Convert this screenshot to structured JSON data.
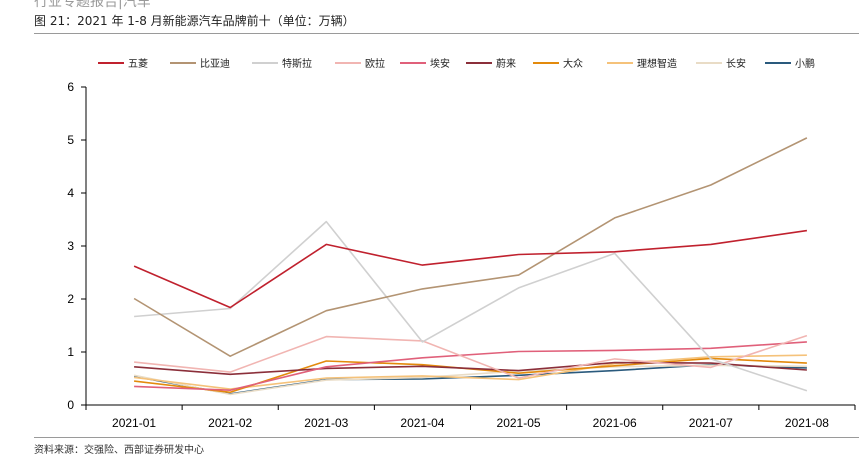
{
  "page": {
    "header_clip": "行业专题报告|汽车",
    "figure_title": "图 21：2021 年 1-8 月新能源汽车品牌前十（单位：万辆）",
    "source": "资料来源：交强险、西部证券研发中心"
  },
  "chart_data": {
    "type": "line",
    "categories": [
      "2021-01",
      "2021-02",
      "2021-03",
      "2021-04",
      "2021-05",
      "2021-06",
      "2021-07",
      "2021-08"
    ],
    "ylim": [
      0,
      6
    ],
    "yticks": [
      0,
      1,
      2,
      3,
      4,
      5,
      6
    ],
    "grid": false,
    "legend_position": "top",
    "series": [
      {
        "name": "五菱",
        "color": "#c0212e",
        "values": [
          2.62,
          1.84,
          3.03,
          2.64,
          2.84,
          2.89,
          3.03,
          3.29
        ]
      },
      {
        "name": "比亚迪",
        "color": "#b39473",
        "values": [
          2.01,
          0.92,
          1.78,
          2.19,
          2.45,
          3.53,
          4.15,
          5.04
        ]
      },
      {
        "name": "特斯拉",
        "color": "#d0d0d0",
        "values": [
          1.67,
          1.82,
          3.46,
          1.19,
          2.21,
          2.86,
          0.87,
          0.27
        ]
      },
      {
        "name": "欧拉",
        "color": "#f1b5b2",
        "values": [
          0.81,
          0.62,
          1.29,
          1.21,
          0.51,
          0.87,
          0.71,
          1.31
        ]
      },
      {
        "name": "埃安",
        "color": "#e0607a",
        "values": [
          0.35,
          0.28,
          0.72,
          0.89,
          1.01,
          1.03,
          1.07,
          1.19
        ]
      },
      {
        "name": "蔚来",
        "color": "#8b2f3a",
        "values": [
          0.72,
          0.58,
          0.69,
          0.73,
          0.65,
          0.8,
          0.79,
          0.66
        ]
      },
      {
        "name": "大众",
        "color": "#e38a0c",
        "values": [
          0.45,
          0.24,
          0.83,
          0.76,
          0.6,
          0.74,
          0.88,
          0.79
        ]
      },
      {
        "name": "理想智造",
        "color": "#f5c27a",
        "values": [
          0.52,
          0.3,
          0.51,
          0.55,
          0.48,
          0.78,
          0.91,
          0.94
        ]
      },
      {
        "name": "长安",
        "color": "#e9dcc6",
        "values": [
          0.56,
          0.2,
          0.47,
          0.52,
          0.64,
          0.72,
          0.75,
          0.73
        ]
      },
      {
        "name": "小鹏",
        "color": "#2a5a7d",
        "values": [
          0.54,
          0.21,
          0.48,
          0.49,
          0.56,
          0.65,
          0.76,
          0.7
        ]
      }
    ]
  }
}
